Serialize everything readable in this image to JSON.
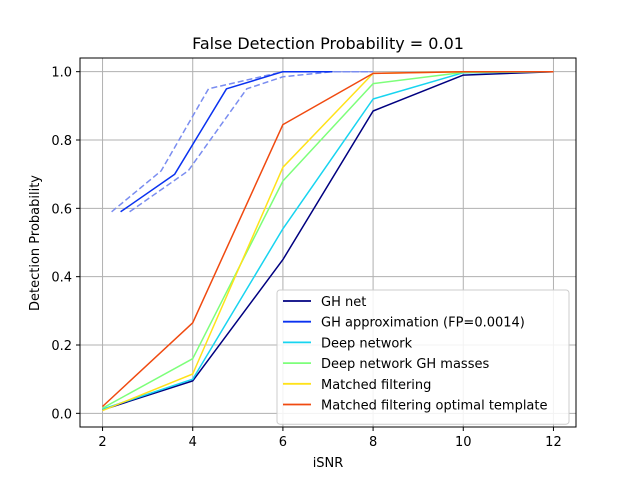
{
  "chart_data": {
    "type": "line",
    "title": "False Detection Probability = 0.01",
    "xlabel": "iSNR",
    "ylabel": "Detection Probability",
    "xlim": [
      1.5,
      12.5
    ],
    "ylim": [
      -0.04,
      1.04
    ],
    "xticks": [
      2,
      4,
      6,
      8,
      10,
      12
    ],
    "yticks": [
      0.0,
      0.2,
      0.4,
      0.6,
      0.8,
      1.0
    ],
    "xtick_labels": [
      "2",
      "4",
      "6",
      "8",
      "10",
      "12"
    ],
    "ytick_labels": [
      "0.0",
      "0.2",
      "0.4",
      "0.6",
      "0.8",
      "1.0"
    ],
    "grid": true,
    "legend_position": "lower-right",
    "series": [
      {
        "name": "GH net",
        "color": "#000080",
        "style": "solid",
        "x": [
          2,
          4,
          6,
          8,
          10,
          12
        ],
        "y": [
          0.01,
          0.095,
          0.45,
          0.885,
          0.99,
          1.0
        ]
      },
      {
        "name": "GH approximation (FP=0.0014)",
        "color": "#0a32f0",
        "style": "solid",
        "x": [
          2.4,
          3.6,
          4.75,
          6.0,
          7.1
        ],
        "y": [
          0.59,
          0.7,
          0.95,
          1.0,
          1.0
        ]
      },
      {
        "name": "Deep network",
        "color": "#17d4f0",
        "style": "solid",
        "x": [
          2,
          4,
          6,
          8,
          10,
          12
        ],
        "y": [
          0.012,
          0.1,
          0.54,
          0.92,
          0.997,
          1.0
        ]
      },
      {
        "name": "Deep network GH masses",
        "color": "#7dff7a",
        "style": "solid",
        "x": [
          2,
          4,
          6,
          8,
          10,
          12
        ],
        "y": [
          0.015,
          0.16,
          0.68,
          0.965,
          0.998,
          1.0
        ]
      },
      {
        "name": "Matched filtering",
        "color": "#ffe21a",
        "style": "solid",
        "x": [
          2,
          4,
          6,
          8,
          10,
          12
        ],
        "y": [
          0.008,
          0.115,
          0.72,
          0.995,
          1.0,
          1.0
        ]
      },
      {
        "name": "Matched filtering optimal template",
        "color": "#f04a10",
        "style": "solid",
        "x": [
          2,
          4,
          6,
          8,
          10,
          12
        ],
        "y": [
          0.02,
          0.265,
          0.845,
          0.995,
          1.0,
          1.0
        ]
      }
    ],
    "bands": [
      {
        "color": "#7a8df0",
        "style": "dashed",
        "x": [
          2.2,
          3.3,
          4.35,
          6.0,
          7.1,
          8.0
        ],
        "y": [
          0.59,
          0.71,
          0.95,
          1.0,
          1.0,
          1.0
        ]
      },
      {
        "color": "#7a8df0",
        "style": "dashed",
        "x": [
          2.6,
          3.9,
          5.2,
          6.0,
          7.1,
          8.0
        ],
        "y": [
          0.59,
          0.71,
          0.95,
          0.985,
          1.0,
          1.0
        ]
      }
    ]
  }
}
